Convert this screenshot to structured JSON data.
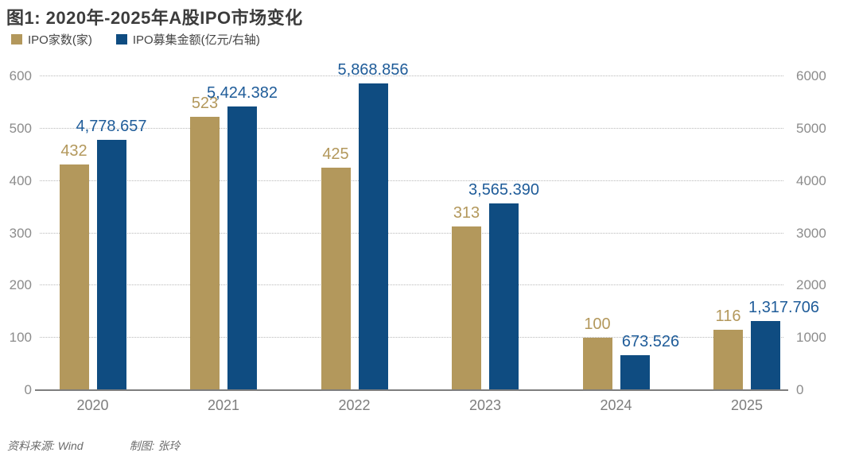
{
  "header": {
    "title": "图1: 2020年-2025年A股IPO市场变化"
  },
  "legend": {
    "items": [
      {
        "label": "IPO家数(家)",
        "color": "#B3985C"
      },
      {
        "label": "IPO募集金额(亿元/右轴)",
        "color": "#0F4C81"
      }
    ]
  },
  "chart_data": {
    "type": "bar",
    "title": "图1: 2020年-2025年A股IPO市场变化",
    "categories": [
      "2020",
      "2021",
      "2022",
      "2023",
      "2024",
      "2025"
    ],
    "series": [
      {
        "name": "IPO家数(家)",
        "axis": "left",
        "color": "#B3985C",
        "label_color": "#B3985C",
        "values": [
          432,
          523,
          425,
          313,
          100,
          116
        ],
        "labels": [
          "432",
          "523",
          "425",
          "313",
          "100",
          "116"
        ]
      },
      {
        "name": "IPO募集金额(亿元/右轴)",
        "axis": "right",
        "color": "#0F4C81",
        "label_color": "#1F5C99",
        "values": [
          4778.657,
          5424.382,
          5868.856,
          3565.39,
          673.526,
          1317.706
        ],
        "labels": [
          "4,778.657",
          "5,424.382",
          "5,868.856",
          "3,565.390",
          "673.526",
          "1,317.706"
        ]
      }
    ],
    "left_axis": {
      "min": 0,
      "max": 600,
      "ticks": [
        0,
        100,
        200,
        300,
        400,
        500,
        600
      ]
    },
    "right_axis": {
      "min": 0,
      "max": 6000,
      "ticks": [
        0,
        1000,
        2000,
        3000,
        4000,
        5000,
        6000
      ]
    },
    "grid": "horizontal-dotted",
    "legend_position": "top-left",
    "colors": {
      "gridline": "#b9b9b9",
      "axis_line": "#7e7e7e",
      "axis_text": "#8c8c8c",
      "category_text": "#7d7d7d"
    }
  },
  "footer": {
    "source": "资料来源: Wind",
    "credit": "制图: 张玲"
  }
}
